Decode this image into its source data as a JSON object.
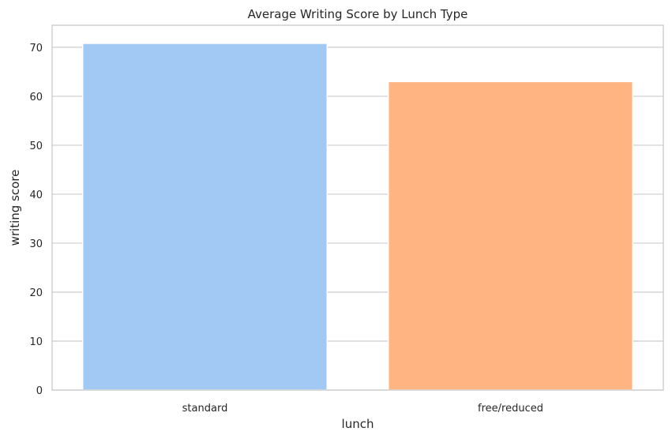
{
  "chart_data": {
    "type": "bar",
    "title": "Average Writing Score by Lunch Type",
    "xlabel": "lunch",
    "ylabel": "writing score",
    "categories": [
      "standard",
      "free/reduced"
    ],
    "values": [
      70.8,
      63.0
    ],
    "ylim": [
      0,
      74.5
    ],
    "yticks": [
      0,
      10,
      20,
      30,
      40,
      50,
      60,
      70
    ],
    "grid": "horizontal",
    "colors": [
      "#a1c9f4",
      "#ffb482"
    ]
  }
}
